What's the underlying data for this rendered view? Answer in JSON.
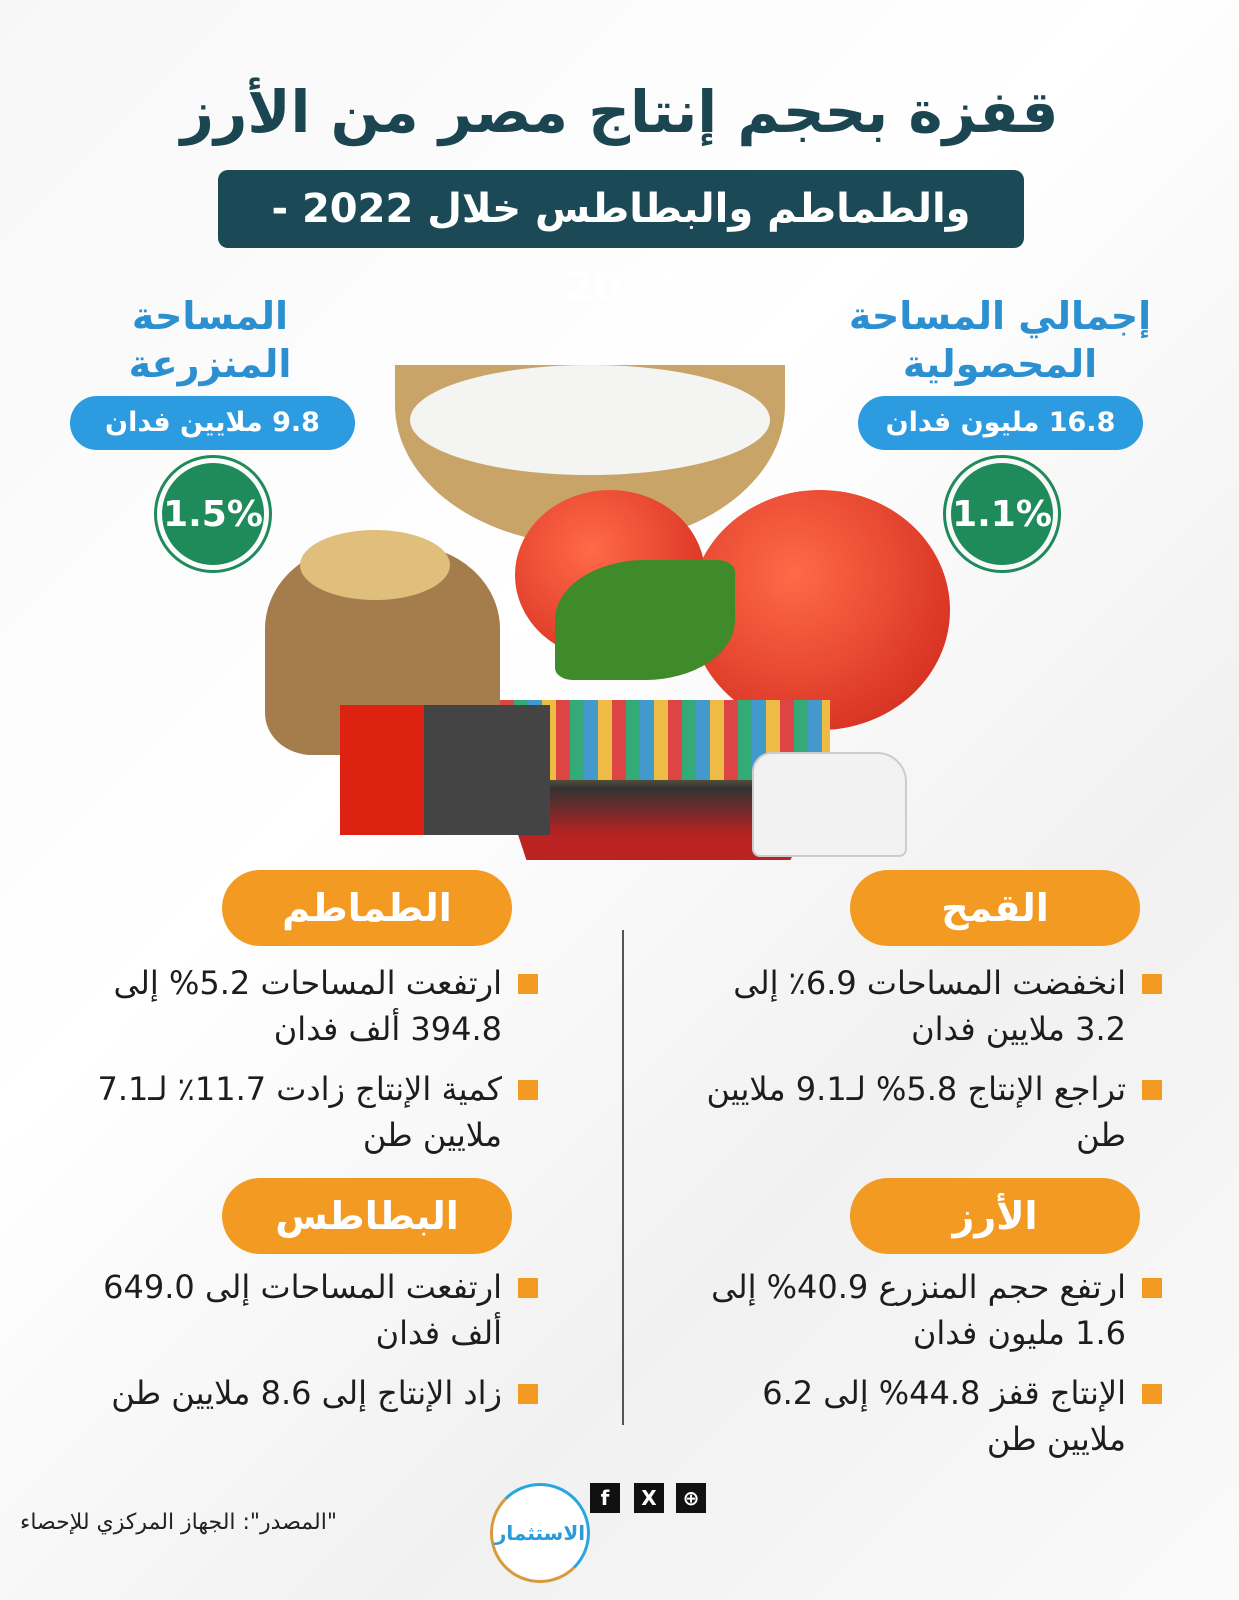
{
  "title": "قفزة بحجم إنتاج مصر من الأرز",
  "subtitle": "والطماطم والبطاطس خلال 2022 - 2023",
  "total_area": {
    "label_line1": "إجمالي المساحة",
    "label_line2": "المحصولية",
    "value": "16.8 مليون فدان",
    "change": "1.1%"
  },
  "cultivated_area": {
    "label_line1": "المساحة",
    "label_line2": "المنزرعة",
    "value": "9.8 ملايين فدان",
    "change": "1.5%"
  },
  "sections": {
    "wheat": {
      "title": "القمح",
      "bullets": [
        "انخفضت المساحات 6.9٪ إلى 3.2 ملايين فدان",
        "تراجع الإنتاج 5.8% لـ9.1 ملايين طن"
      ]
    },
    "rice": {
      "title": "الأرز",
      "bullets": [
        "ارتفع حجم المنزرع 40.9% إلى 1.6 مليون فدان",
        "الإنتاج قفز 44.8% إلى 6.2 ملايين طن"
      ]
    },
    "tomatoes": {
      "title": "الطماطم",
      "bullets": [
        "ارتفعت المساحات 5.2% إلى 394.8 ألف فدان",
        "كمية الإنتاج زادت 11.7٪ لـ7.1 ملايين طن"
      ]
    },
    "potatoes": {
      "title": "البطاطس",
      "bullets": [
        "ارتفعت المساحات إلى 649.0 ألف فدان",
        "زاد الإنتاج إلى 8.6 ملايين طن"
      ]
    }
  },
  "source": "\"المصدر\": الجهاز المركزي للإحصاء",
  "logo_text": "الاستثمار",
  "social": {
    "facebook": "f",
    "x": "X",
    "web": "⊕"
  },
  "colors": {
    "title": "#1c4552",
    "accent_blue": "#2c9be0",
    "green": "#1f8a5a",
    "orange": "#f39a23"
  }
}
